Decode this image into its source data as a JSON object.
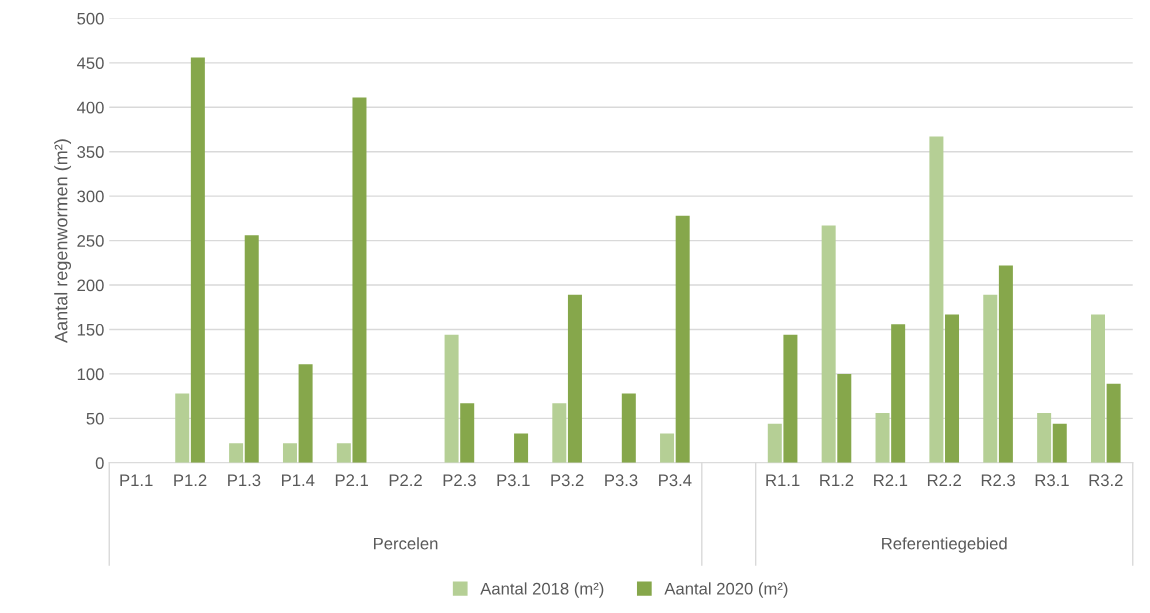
{
  "chart_data": {
    "type": "bar",
    "ylabel": "Aantal regenwormen (m²)",
    "categories": [
      "P1.1",
      "P1.2",
      "P1.3",
      "P1.4",
      "P2.1",
      "P2.2",
      "P2.3",
      "P3.1",
      "P3.2",
      "P3.3",
      "P3.4",
      null,
      "R1.1",
      "R1.2",
      "R2.1",
      "R2.2",
      "R2.3",
      "R3.1",
      "R3.2"
    ],
    "series": [
      {
        "name": "Aantal 2018 (m²)",
        "color": "#b5cf95",
        "values": [
          0,
          78,
          22,
          22,
          22,
          0,
          144,
          0,
          67,
          0,
          33,
          null,
          44,
          267,
          56,
          367,
          189,
          56,
          167
        ]
      },
      {
        "name": "Aantal 2020 (m²)",
        "color": "#86a74b",
        "values": [
          0,
          456,
          256,
          111,
          411,
          0,
          67,
          33,
          189,
          78,
          278,
          null,
          144,
          100,
          156,
          167,
          222,
          44,
          89
        ]
      }
    ],
    "ylim": [
      0,
      500
    ],
    "yticks": [
      0,
      50,
      100,
      150,
      200,
      250,
      300,
      350,
      400,
      450,
      500
    ],
    "grid": "y",
    "legend": "bottom",
    "annotations": [
      "Percelen",
      "Referentiegebied"
    ]
  }
}
